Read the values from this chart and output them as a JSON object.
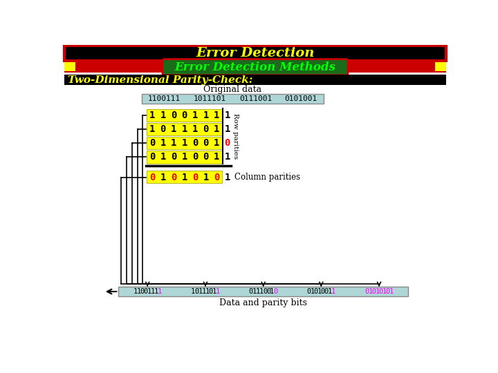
{
  "title": "Error Detection",
  "subtitle": "Error Detection Methods",
  "section_label": "Two-Dimensional Parity-Check:",
  "original_data_label": "Original data",
  "original_data_words": [
    "1100111",
    "1011101",
    "0111001",
    "0101001"
  ],
  "data_matrix": [
    [
      1,
      1,
      0,
      0,
      1,
      1,
      1
    ],
    [
      1,
      0,
      1,
      1,
      1,
      0,
      1
    ],
    [
      0,
      1,
      1,
      1,
      0,
      0,
      1
    ],
    [
      0,
      1,
      0,
      1,
      0,
      0,
      1
    ]
  ],
  "row_parities": [
    1,
    1,
    0,
    1
  ],
  "row_parity_colors": [
    "black",
    "black",
    "red",
    "black"
  ],
  "col_parities": [
    0,
    1,
    0,
    1,
    0,
    1,
    0
  ],
  "col_parities_last": 1,
  "col_parity_colors": [
    "red",
    "black",
    "red",
    "black",
    "red",
    "black",
    "red"
  ],
  "bottom_words": [
    "11001111",
    "10111011",
    "01110010",
    "01010011",
    "01010101"
  ],
  "bottom_word_last_colors": [
    "magenta",
    "magenta",
    "magenta",
    "magenta",
    "magenta"
  ],
  "bottom_word5_all_magenta": true,
  "data_and_parity_label": "Data and parity bits",
  "column_parities_label": "Column parities",
  "row_parities_label": "Row parities",
  "bg_color": "#ffffff",
  "title_bg": "#000000",
  "title_border": "#cc0000",
  "title_text_color": "#ffff00",
  "subtitle_bg": "#1a6b1a",
  "subtitle_border": "#cc0000",
  "subtitle_text_color": "#00ff00",
  "section_bg": "#000000",
  "section_text_color": "#ffff00",
  "matrix_bg": "#ffff00",
  "original_box_bg": "#aed6d6",
  "bottom_box_bg": "#aed6d6"
}
